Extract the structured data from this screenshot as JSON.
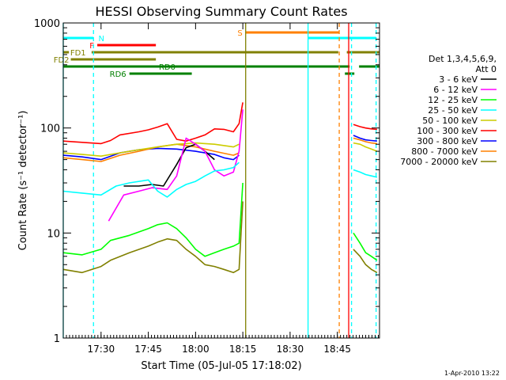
{
  "chart_data": {
    "type": "line",
    "title": "HESSI Observing Summary Count Rates",
    "xlabel": "Start Time (05-Jul-05 17:18:02)",
    "ylabel": "Count Rate (s⁻¹ detector⁻¹)",
    "x_axis": {
      "unit": "minutes",
      "range": [
        17.3,
        18.973
      ],
      "ticks": [
        {
          "v": 17.5,
          "label": "17:30"
        },
        {
          "v": 17.75,
          "label": "17:45"
        },
        {
          "v": 18.0,
          "label": "18:00"
        },
        {
          "v": 18.25,
          "label": "18:15"
        },
        {
          "v": 18.5,
          "label": "18:30"
        },
        {
          "v": 18.75,
          "label": "18:45"
        }
      ]
    },
    "y_axis": {
      "scale": "log",
      "range": [
        1,
        1000
      ],
      "ticks": [
        {
          "v": 1,
          "label": "1"
        },
        {
          "v": 10,
          "label": "10"
        },
        {
          "v": 100,
          "label": "100"
        },
        {
          "v": 1000,
          "label": "1000"
        }
      ]
    },
    "legend": {
      "position": "right",
      "header": [
        "Det 1,3,4,5,6,9,",
        "Att 0"
      ],
      "entries": [
        {
          "label": "3 - 6 keV",
          "color": "#000000"
        },
        {
          "label": "6 - 12 keV",
          "color": "#ff00ff"
        },
        {
          "label": "12 - 25 keV",
          "color": "#00ff00"
        },
        {
          "label": "25 - 50 keV",
          "color": "#00ffff"
        },
        {
          "label": "50 - 100 keV",
          "color": "#cccc00"
        },
        {
          "label": "100 - 300 keV",
          "color": "#ff0000"
        },
        {
          "label": "300 - 800 keV",
          "color": "#0000ff"
        },
        {
          "label": "800 - 7000 keV",
          "color": "#ff8000"
        },
        {
          "label": "7000 - 20000 keV",
          "color": "#808000"
        }
      ]
    },
    "series": [
      {
        "name": "100 - 300 keV",
        "color": "#ff0000",
        "segments": [
          {
            "x": [
              17.3,
              17.4,
              17.5,
              17.55,
              17.6,
              17.7,
              17.75,
              17.8,
              17.85,
              17.9,
              17.95,
              18.0,
              18.05,
              18.1,
              18.15,
              18.2,
              18.23,
              18.25
            ],
            "y": [
              75,
              73,
              71,
              76,
              86,
              92,
              96,
              102,
              110,
              78,
              75,
              80,
              86,
              98,
              97,
              92,
              110,
              175
            ]
          },
          {
            "x": [
              18.835,
              18.87,
              18.9,
              18.93,
              18.96
            ],
            "y": [
              108,
              103,
              100,
              98,
              97
            ]
          }
        ]
      },
      {
        "name": "300 - 800 keV",
        "color": "#0000ff",
        "segments": [
          {
            "x": [
              17.3,
              17.4,
              17.5,
              17.6,
              17.7,
              17.8,
              17.9,
              18.0,
              18.05,
              18.1,
              18.15,
              18.2,
              18.23
            ],
            "y": [
              55,
              53,
              50,
              58,
              62,
              64,
              63,
              60,
              58,
              56,
              52,
              50,
              55
            ]
          },
          {
            "x": [
              18.835,
              18.87,
              18.9,
              18.93,
              18.96
            ],
            "y": [
              85,
              80,
              77,
              76,
              75
            ]
          }
        ]
      },
      {
        "name": "800 - 7000 keV",
        "color": "#ff8000",
        "segments": [
          {
            "x": [
              17.3,
              17.4,
              17.5,
              17.6,
              17.7,
              17.8,
              17.9,
              18.0,
              18.1,
              18.2,
              18.23
            ],
            "y": [
              52,
              50,
              48,
              55,
              60,
              66,
              70,
              66,
              60,
              55,
              58
            ]
          },
          {
            "x": [
              18.835,
              18.87,
              18.9,
              18.93,
              18.96
            ],
            "y": [
              80,
              77,
              74,
              72,
              71
            ]
          }
        ]
      },
      {
        "name": "50 - 100 keV",
        "color": "#cccc00",
        "segments": [
          {
            "x": [
              17.3,
              17.4,
              17.5,
              17.6,
              17.7,
              17.8,
              17.9,
              18.0,
              18.1,
              18.2,
              18.23
            ],
            "y": [
              58,
              56,
              54,
              58,
              62,
              66,
              70,
              72,
              70,
              66,
              70
            ]
          },
          {
            "x": [
              18.835,
              18.87,
              18.9,
              18.93,
              18.96
            ],
            "y": [
              72,
              70,
              66,
              63,
              60
            ]
          }
        ]
      },
      {
        "name": "3 - 6 keV",
        "color": "#000000",
        "segments": [
          {
            "x": [
              17.62,
              17.7,
              17.77,
              17.83,
              17.9,
              17.95,
              18.0,
              18.05,
              18.1
            ],
            "y": [
              28,
              28,
              29,
              28,
              45,
              65,
              70,
              60,
              50
            ]
          }
        ]
      },
      {
        "name": "6 - 12 keV",
        "color": "#ff00ff",
        "segments": [
          {
            "x": [
              17.54,
              17.62,
              17.7,
              17.77,
              17.85,
              17.9,
              17.95,
              18.0,
              18.05,
              18.1,
              18.15,
              18.2,
              18.23,
              18.25
            ],
            "y": [
              13,
              23,
              25,
              27,
              26,
              35,
              80,
              70,
              60,
              40,
              35,
              38,
              60,
              150
            ]
          }
        ]
      },
      {
        "name": "25 - 50 keV",
        "color": "#00ffff",
        "segments": [
          {
            "x": [
              17.3,
              17.4,
              17.5,
              17.58,
              17.65,
              17.75,
              17.8,
              17.85,
              17.9,
              17.95,
              18.0,
              18.05,
              18.1,
              18.15,
              18.2,
              18.23
            ],
            "y": [
              25,
              24,
              23,
              28,
              30,
              32,
              25,
              22,
              26,
              29,
              31,
              35,
              39,
              40,
              42,
              47
            ]
          },
          {
            "x": [
              18.835,
              18.87,
              18.9,
              18.93,
              18.96
            ],
            "y": [
              40,
              38,
              36,
              35,
              34
            ]
          }
        ]
      },
      {
        "name": "12 - 25 keV",
        "color": "#00ff00",
        "segments": [
          {
            "x": [
              17.3,
              17.4,
              17.5,
              17.55,
              17.65,
              17.75,
              17.8,
              17.85,
              17.9,
              17.95,
              18.0,
              18.05,
              18.1,
              18.15,
              18.2,
              18.23,
              18.25
            ],
            "y": [
              6.5,
              6.2,
              7,
              8.5,
              9.5,
              11,
              12,
              12.5,
              11,
              9,
              7,
              6,
              6.5,
              7,
              7.5,
              8,
              30
            ]
          },
          {
            "x": [
              18.835,
              18.87,
              18.9,
              18.93,
              18.96
            ],
            "y": [
              10,
              8,
              6.5,
              6,
              5.5
            ]
          }
        ]
      },
      {
        "name": "7000 - 20000 keV",
        "color": "#808000",
        "segments": [
          {
            "x": [
              17.3,
              17.4,
              17.5,
              17.55,
              17.65,
              17.75,
              17.8,
              17.85,
              17.9,
              17.95,
              18.0,
              18.05,
              18.1,
              18.15,
              18.2,
              18.23,
              18.25
            ],
            "y": [
              4.5,
              4.2,
              4.8,
              5.5,
              6.5,
              7.5,
              8.2,
              8.8,
              8.5,
              7,
              6,
              5,
              4.8,
              4.5,
              4.2,
              4.5,
              20
            ]
          },
          {
            "x": [
              18.835,
              18.87,
              18.9,
              18.93,
              18.96
            ],
            "y": [
              7,
              6,
              5,
              4.5,
              4.2
            ]
          }
        ]
      }
    ],
    "verticals": [
      {
        "x": 17.3,
        "color": "#00ffff",
        "dash": false
      },
      {
        "x": 17.46,
        "color": "#00ffff",
        "dash": true
      },
      {
        "x": 18.265,
        "color": "#808000",
        "dash": false
      },
      {
        "x": 18.595,
        "color": "#00ffff",
        "dash": false
      },
      {
        "x": 18.76,
        "color": "#ff8000",
        "dash": true
      },
      {
        "x": 18.81,
        "color": "#ff0000",
        "dash": false
      },
      {
        "x": 18.825,
        "color": "#00ffff",
        "dash": true
      },
      {
        "x": 18.955,
        "color": "#00ffff",
        "dash": true
      }
    ],
    "flag_bars": [
      {
        "label": "N",
        "color": "#00ffff",
        "level": 0,
        "segments": [
          [
            17.3,
            17.46
          ],
          [
            18.595,
            18.955
          ]
        ]
      },
      {
        "label": "F",
        "color": "#ff0000",
        "level": 1,
        "segments": [
          [
            17.48,
            17.79
          ]
        ]
      },
      {
        "label": "S",
        "color": "#ff8000",
        "level": -1,
        "segments": [
          [
            18.265,
            18.76
          ]
        ]
      },
      {
        "label": "FD1",
        "color": "#808000",
        "level": 2,
        "segments": [
          [
            17.3,
            17.33
          ],
          [
            17.45,
            18.755
          ],
          [
            18.8,
            18.973
          ]
        ]
      },
      {
        "label": "FD2",
        "color": "#808000",
        "level": 3,
        "segments": [
          [
            17.34,
            17.79
          ]
        ]
      },
      {
        "label": "RD0",
        "color": "#008000",
        "level": 4,
        "segments": [
          [
            17.3,
            18.815
          ],
          [
            18.865,
            18.973
          ]
        ]
      },
      {
        "label": "RD6",
        "color": "#008000",
        "level": 5,
        "segments": [
          [
            17.65,
            17.98
          ],
          [
            18.79,
            18.84
          ]
        ]
      }
    ],
    "footer_date": "1-Apr-2010 13:22"
  }
}
